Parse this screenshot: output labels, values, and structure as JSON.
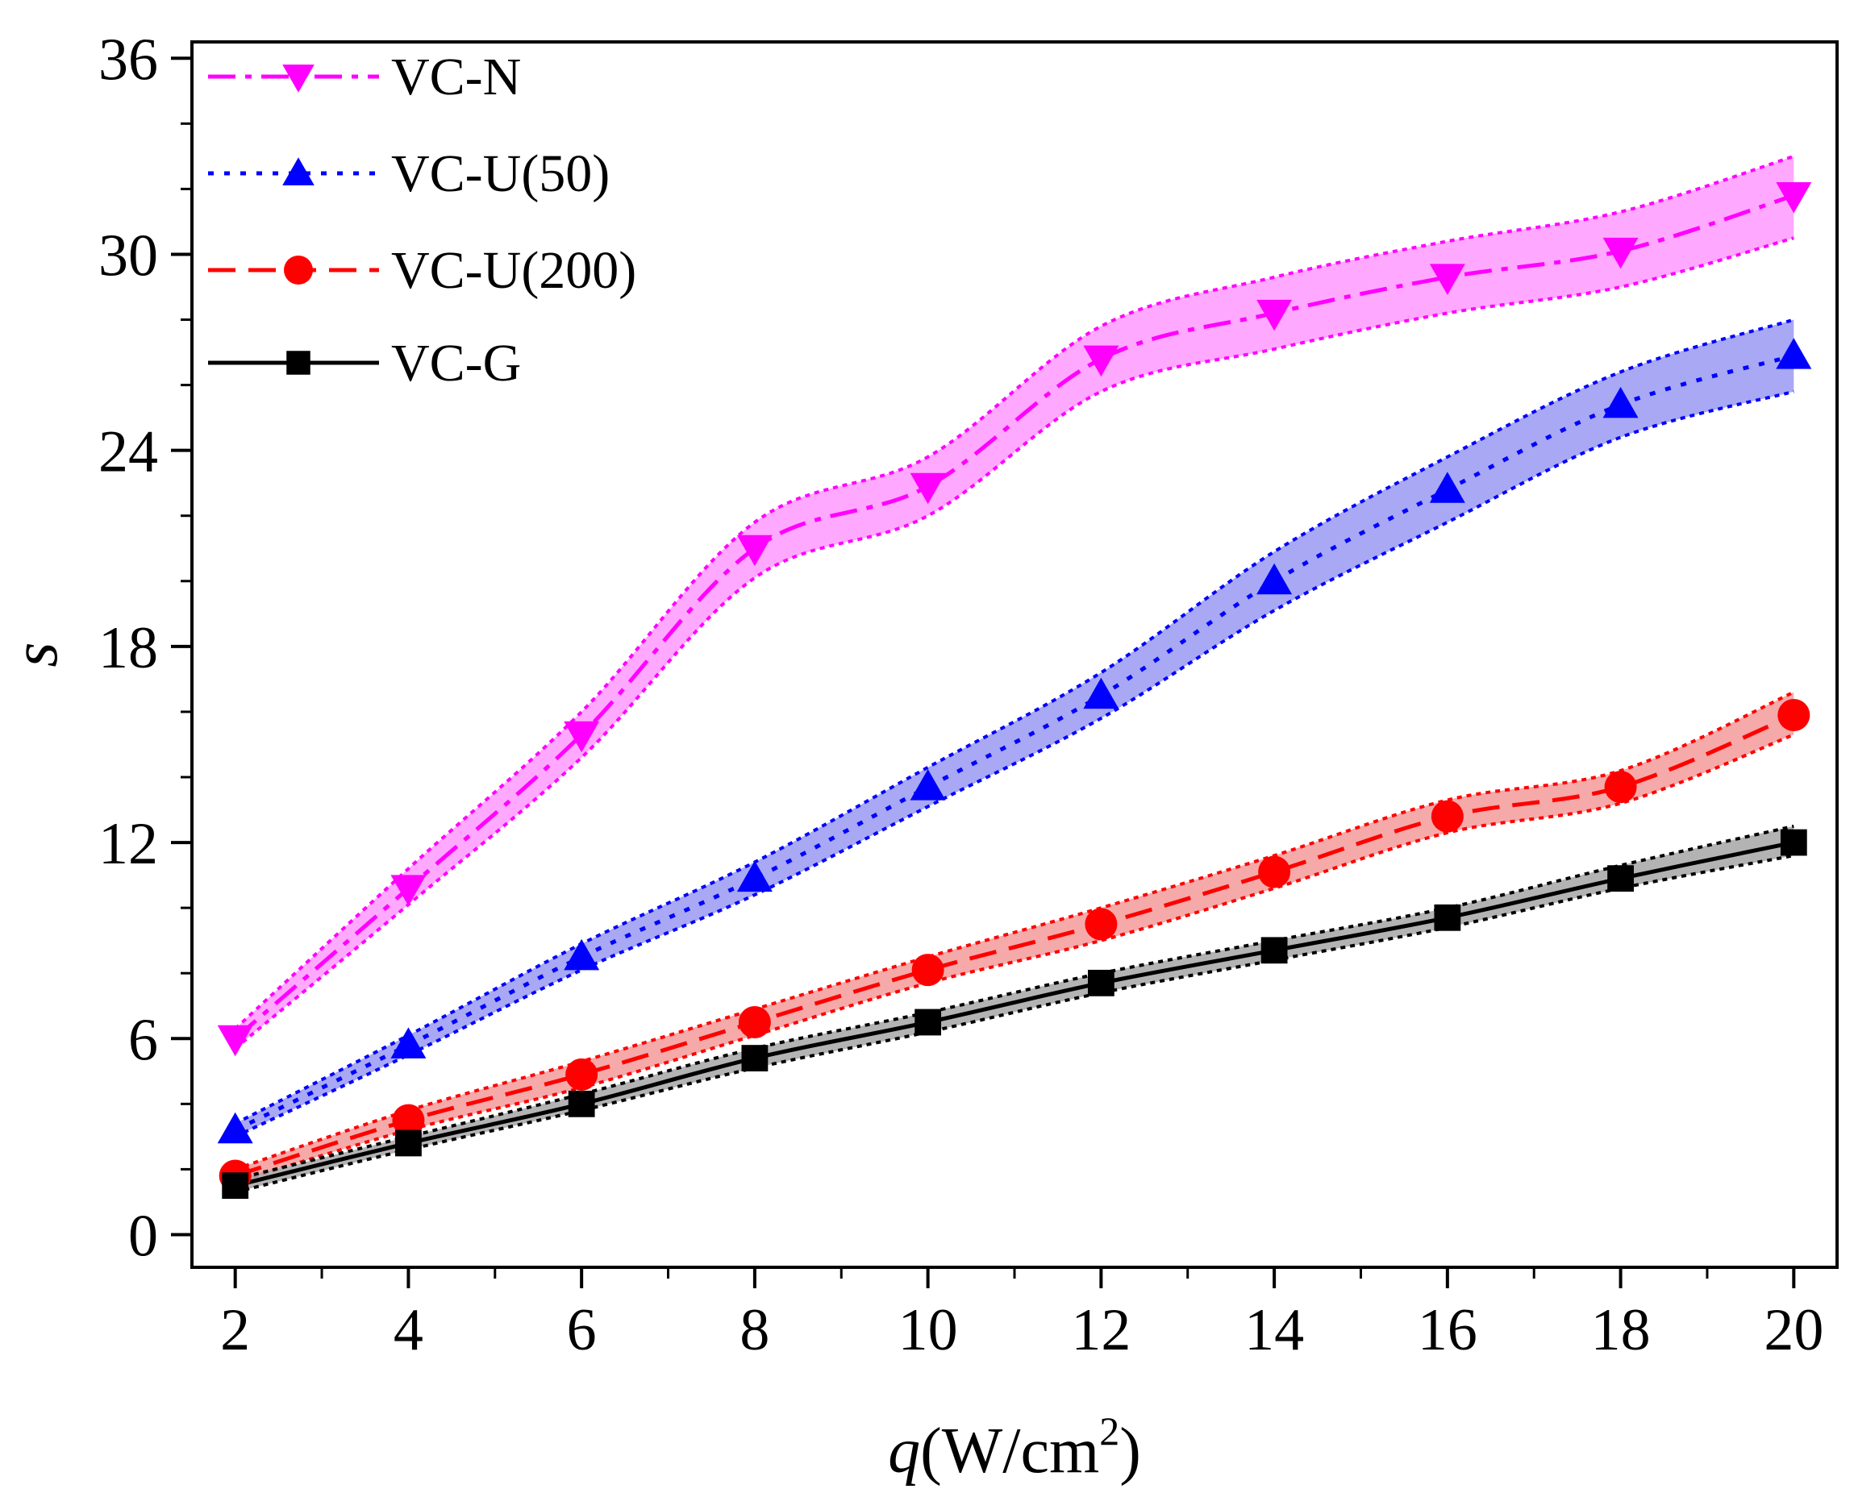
{
  "chart_data": {
    "type": "line",
    "title": "",
    "xlabel": {
      "var": "q",
      "unit_pre": "(W/cm",
      "unit_sup": "2",
      "unit_post": ")"
    },
    "ylabel": "s",
    "x": [
      2,
      4,
      6,
      8,
      10,
      12,
      14,
      16,
      18,
      20
    ],
    "xlim": [
      1.5,
      20.5
    ],
    "ylim": [
      -1,
      36.5
    ],
    "xticks": [
      2,
      4,
      6,
      8,
      10,
      12,
      14,
      16,
      18,
      20
    ],
    "xtick_labels": [
      "2",
      "4",
      "6",
      "8",
      "10",
      "12",
      "14",
      "16",
      "18",
      "20"
    ],
    "yticks": [
      0,
      6,
      12,
      18,
      24,
      30,
      36
    ],
    "ytick_labels": [
      "0",
      "6",
      "12",
      "18",
      "24",
      "30",
      "36"
    ],
    "legend_position": "top-left",
    "series": [
      {
        "name": "VC-N",
        "color": "#ff00ff",
        "band_color": "#ff99ff",
        "marker": "triangle-down",
        "line_style": "dash-dot",
        "values": [
          6.0,
          10.6,
          15.3,
          21.0,
          22.9,
          26.8,
          28.2,
          29.3,
          30.1,
          31.8
        ],
        "upper": [
          6.3,
          11.2,
          16.0,
          21.8,
          23.8,
          27.8,
          29.3,
          30.4,
          31.3,
          33.0
        ],
        "lower": [
          5.7,
          10.1,
          14.6,
          20.1,
          22.0,
          25.8,
          27.1,
          28.2,
          29.0,
          30.5
        ]
      },
      {
        "name": "VC-U(50)",
        "color": "#0000ff",
        "band_color": "#9999f2",
        "marker": "triangle-up",
        "line_style": "dot",
        "values": [
          3.2,
          5.8,
          8.5,
          10.9,
          13.7,
          16.5,
          20.0,
          22.8,
          25.4,
          26.9
        ],
        "upper": [
          3.4,
          6.1,
          8.9,
          11.4,
          14.3,
          17.2,
          20.9,
          23.8,
          26.4,
          28.0
        ],
        "lower": [
          3.0,
          5.5,
          8.1,
          10.4,
          13.1,
          15.8,
          19.1,
          21.8,
          24.4,
          25.8
        ]
      },
      {
        "name": "VC-U(200)",
        "color": "#ff0000",
        "band_color": "#f59a9a",
        "marker": "circle",
        "line_style": "dash",
        "values": [
          1.8,
          3.5,
          4.9,
          6.5,
          8.1,
          9.5,
          11.1,
          12.8,
          13.7,
          15.9
        ],
        "upper": [
          2.0,
          3.8,
          5.3,
          6.9,
          8.5,
          10.0,
          11.6,
          13.3,
          14.2,
          16.6
        ],
        "lower": [
          1.6,
          3.2,
          4.5,
          6.1,
          7.7,
          9.0,
          10.6,
          12.3,
          13.2,
          15.3
        ]
      },
      {
        "name": "VC-G",
        "color": "#000000",
        "band_color": "#a6a6a6",
        "marker": "square",
        "line_style": "solid",
        "values": [
          1.5,
          2.8,
          4.0,
          5.4,
          6.5,
          7.7,
          8.7,
          9.7,
          10.9,
          12.0
        ],
        "upper": [
          1.7,
          3.0,
          4.3,
          5.7,
          6.8,
          8.0,
          9.0,
          10.0,
          11.3,
          12.5
        ],
        "lower": [
          1.3,
          2.6,
          3.8,
          5.1,
          6.2,
          7.4,
          8.4,
          9.4,
          10.6,
          11.6
        ]
      }
    ]
  }
}
